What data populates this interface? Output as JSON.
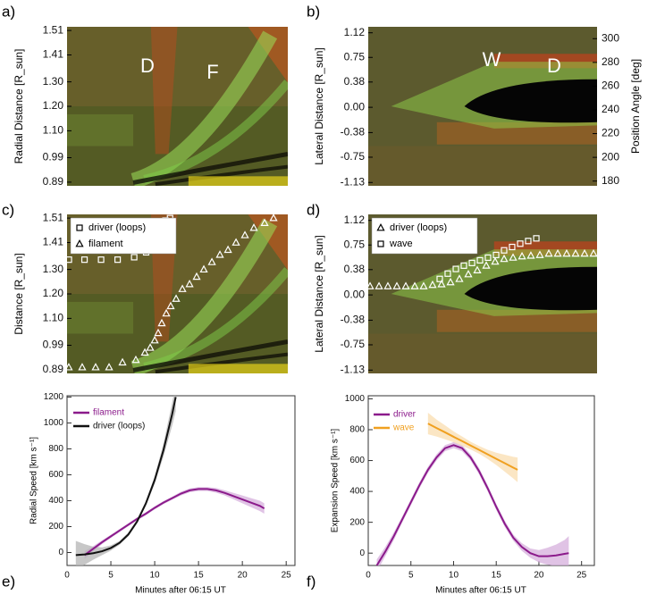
{
  "chart_data": [
    {
      "type": "image",
      "panel": "a)",
      "ylabel": "Radial Distance [R_sun]",
      "ylim": [
        0.875,
        1.525
      ],
      "yticks": [
        0.89,
        0.99,
        {
          "value": 1.1,
          "label": "1.10"
        },
        {
          "value": 1.2,
          "label": "1.20"
        },
        {
          "value": 1.3,
          "label": "1.30"
        },
        1.41,
        1.51
      ],
      "annotations": [
        "D",
        "F"
      ]
    },
    {
      "type": "image",
      "panel": "b)",
      "ylabel": "Lateral Distance [R_sun]",
      "y2label": "Position Angle [deg]",
      "ylim": [
        -1.18,
        1.21
      ],
      "yticks": [
        -1.13,
        -0.75,
        -0.38,
        {
          "value": 0,
          "label": "0.00"
        },
        0.38,
        0.75,
        1.12
      ],
      "y2lim": [
        176,
        310
      ],
      "y2ticks": [
        180,
        200,
        220,
        240,
        260,
        280,
        300
      ],
      "annotations": [
        "W",
        "D"
      ]
    },
    {
      "type": "scatter",
      "panel": "c)",
      "ylabel": "Distance [R_sun]",
      "xlim": [
        0,
        24
      ],
      "ylim": [
        0.875,
        1.525
      ],
      "yticks": [
        0.89,
        0.99,
        {
          "value": 1.1,
          "label": "1.10"
        },
        {
          "value": 1.2,
          "label": "1.20"
        },
        {
          "value": 1.3,
          "label": "1.30"
        },
        1.41,
        1.51
      ],
      "series": [
        {
          "name": "driver (loops)",
          "marker": "square",
          "color": "#ffffff",
          "x": [
            0.2,
            1.9,
            3.7,
            5.5,
            7.3,
            8.6,
            9.2,
            9.7,
            9.9,
            10.2,
            10.4,
            10.7,
            11.2
          ],
          "values": [
            1.34,
            1.34,
            1.34,
            1.34,
            1.35,
            1.37,
            1.39,
            1.41,
            1.43,
            1.46,
            1.48,
            1.5,
            1.51
          ]
        },
        {
          "name": "filament",
          "marker": "triangle",
          "color": "#ffffff",
          "x": [
            0.19,
            1.65,
            3.11,
            4.57,
            6.03,
            7.48,
            8.46,
            9.04,
            9.53,
            9.91,
            10.3,
            10.79,
            11.27,
            11.86,
            12.54,
            13.32,
            14.09,
            14.87,
            15.75,
            16.62,
            17.5,
            18.37,
            19.34,
            20.31,
            21.48,
            22.45
          ],
          "values": [
            0.9,
            0.9,
            0.9,
            0.9,
            0.92,
            0.93,
            0.96,
            0.98,
            1.01,
            1.04,
            1.08,
            1.12,
            1.15,
            1.18,
            1.22,
            1.24,
            1.27,
            1.3,
            1.33,
            1.36,
            1.38,
            1.41,
            1.44,
            1.47,
            1.49,
            1.51
          ]
        }
      ]
    },
    {
      "type": "scatter",
      "panel": "d)",
      "ylabel": "Lateral Distance [R_sun]",
      "xlim": [
        0,
        24
      ],
      "ylim": [
        -1.18,
        1.21
      ],
      "yticks": [
        -1.13,
        -0.75,
        -0.38,
        {
          "value": 0,
          "label": "0.00"
        },
        0.38,
        0.75,
        1.12
      ],
      "series": [
        {
          "name": "driver (loops)",
          "marker": "triangle",
          "color": "#ffffff",
          "x": [
            0.19,
            1.13,
            2.06,
            3.0,
            3.94,
            4.88,
            5.81,
            6.75,
            7.69,
            8.63,
            9.56,
            10.5,
            11.44,
            12.38,
            13.31,
            14.25,
            15.19,
            16.13,
            17.06,
            18.0,
            18.94,
            19.88,
            20.81,
            21.75,
            22.69,
            23.63
          ],
          "values": [
            0.13,
            0.13,
            0.13,
            0.13,
            0.13,
            0.13,
            0.13,
            0.15,
            0.16,
            0.19,
            0.24,
            0.31,
            0.37,
            0.44,
            0.5,
            0.54,
            0.56,
            0.58,
            0.59,
            0.6,
            0.62,
            0.62,
            0.62,
            0.62,
            0.62,
            0.62
          ]
        },
        {
          "name": "wave",
          "marker": "square",
          "color": "#ffffff",
          "x": [
            7.5,
            8.34,
            9.19,
            10.03,
            10.88,
            11.72,
            12.56,
            13.41,
            14.25,
            15.09,
            15.94,
            16.78,
            17.63
          ],
          "values": [
            0.24,
            0.32,
            0.39,
            0.44,
            0.48,
            0.52,
            0.56,
            0.6,
            0.67,
            0.72,
            0.77,
            0.81,
            0.85
          ]
        }
      ]
    },
    {
      "type": "line",
      "panel": "e)",
      "xlabel": "Minutes after 06:15 UT",
      "ylabel": "Radial Speed [km s⁻¹]",
      "xlim": [
        0,
        26
      ],
      "ylim": [
        -100,
        1210
      ],
      "xticks": [
        0,
        5,
        10,
        15,
        20,
        25
      ],
      "yticks": [
        0,
        200,
        400,
        600,
        800,
        1000,
        1200
      ],
      "series": [
        {
          "name": "filament",
          "color": "#8b1a8b",
          "band_color": "#d6afdc",
          "x": [
            2,
            3,
            4,
            5,
            6,
            7,
            8,
            9,
            10,
            11,
            12,
            13,
            14,
            15,
            16,
            17,
            18,
            19,
            20,
            21,
            22,
            22.5
          ],
          "values": [
            -20,
            30,
            80,
            125,
            170,
            215,
            260,
            300,
            345,
            385,
            420,
            455,
            480,
            490,
            490,
            480,
            460,
            435,
            410,
            385,
            360,
            340
          ],
          "lower": [
            -50,
            10,
            65,
            113,
            158,
            203,
            248,
            288,
            333,
            373,
            408,
            440,
            465,
            475,
            475,
            462,
            440,
            410,
            380,
            350,
            320,
            300
          ],
          "upper": [
            10,
            50,
            95,
            137,
            182,
            227,
            272,
            312,
            357,
            397,
            432,
            470,
            495,
            505,
            505,
            498,
            480,
            460,
            440,
            420,
            400,
            380
          ]
        },
        {
          "name": "driver (loops)",
          "color": "#111111",
          "band_color": "#b4b4b4",
          "x": [
            1,
            2,
            3,
            4,
            5,
            6,
            7,
            8,
            9,
            10,
            11,
            12,
            12.4
          ],
          "values": [
            -20,
            -15,
            -5,
            10,
            35,
            75,
            140,
            240,
            380,
            560,
            790,
            1070,
            1200
          ],
          "lower": [
            -130,
            -95,
            -55,
            -20,
            15,
            60,
            125,
            225,
            360,
            530,
            740,
            980,
            1090
          ],
          "upper": [
            90,
            65,
            45,
            40,
            55,
            90,
            155,
            255,
            400,
            590,
            840,
            1160,
            1310
          ]
        }
      ]
    },
    {
      "type": "line",
      "panel": "f)",
      "xlabel": "Minutes after 06:15 UT",
      "ylabel": "Expansion Speed [km s⁻¹]",
      "xlim": [
        0,
        26.5
      ],
      "ylim": [
        -80,
        1020
      ],
      "xticks": [
        0,
        5,
        10,
        15,
        20,
        25
      ],
      "yticks": [
        0,
        200,
        400,
        600,
        800,
        1000
      ],
      "series": [
        {
          "name": "driver",
          "color": "#8b1a8b",
          "band_color": "#d6afdc",
          "x": [
            1,
            2,
            3,
            4,
            5,
            6,
            7,
            8,
            9,
            10,
            11,
            12,
            13,
            14,
            15,
            16,
            17,
            18,
            19,
            20,
            21,
            22,
            23,
            23.5
          ],
          "values": [
            -80,
            10,
            110,
            220,
            330,
            440,
            540,
            620,
            680,
            700,
            680,
            620,
            530,
            420,
            300,
            190,
            100,
            40,
            0,
            -20,
            -20,
            -15,
            -5,
            0
          ],
          "lower": [
            -120,
            -20,
            85,
            200,
            310,
            420,
            520,
            600,
            660,
            680,
            660,
            600,
            510,
            400,
            280,
            170,
            80,
            15,
            -30,
            -60,
            -75,
            -85,
            -95,
            -110
          ],
          "upper": [
            -40,
            40,
            135,
            240,
            350,
            460,
            560,
            640,
            700,
            720,
            700,
            640,
            550,
            440,
            320,
            210,
            120,
            65,
            30,
            20,
            35,
            55,
            85,
            110
          ]
        },
        {
          "name": "wave",
          "color": "#f0a020",
          "band_color": "#f9ddb0",
          "x": [
            7,
            8,
            9,
            10,
            11,
            12,
            13,
            14,
            15,
            16,
            17,
            17.5
          ],
          "values": [
            840,
            811,
            783,
            754,
            726,
            697,
            669,
            640,
            611,
            583,
            554,
            540
          ],
          "lower": [
            770,
            756,
            738,
            719,
            696,
            672,
            644,
            610,
            571,
            528,
            484,
            460
          ],
          "upper": [
            910,
            866,
            828,
            789,
            756,
            722,
            694,
            670,
            651,
            638,
            624,
            620
          ]
        }
      ]
    }
  ]
}
